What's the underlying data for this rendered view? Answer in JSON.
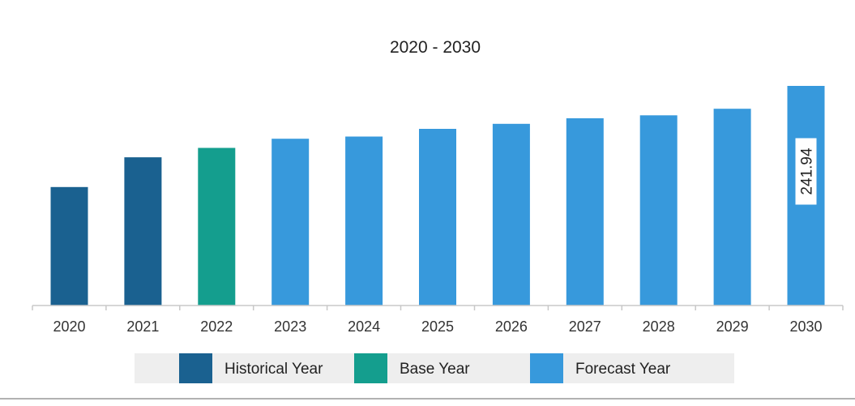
{
  "chart_data": {
    "type": "bar",
    "title": "2020 - 2030",
    "xlabel": "",
    "ylabel": "",
    "categories": [
      "2020",
      "2021",
      "2022",
      "2023",
      "2024",
      "2025",
      "2026",
      "2027",
      "2028",
      "2029",
      "2030"
    ],
    "values": [
      130.5,
      163.3,
      173.6,
      183.7,
      186.1,
      194.6,
      200.2,
      206.3,
      209.5,
      216.8,
      241.94
    ],
    "value_labels": [
      "",
      "",
      "",
      "",
      "",
      "",
      "",
      "",
      "",
      "",
      "241.94"
    ],
    "bar_groups": [
      "historical",
      "historical",
      "base",
      "forecast",
      "forecast",
      "forecast",
      "forecast",
      "forecast",
      "forecast",
      "forecast",
      "forecast"
    ],
    "ylim": [
      0,
      241.94
    ],
    "grid": false,
    "legend_position": "bottom",
    "legend": [
      {
        "key": "historical",
        "label": "Historical Year",
        "color": "#1a6190"
      },
      {
        "key": "base",
        "label": "Base Year",
        "color": "#149e8e"
      },
      {
        "key": "forecast",
        "label": "Forecast Year",
        "color": "#3799dc"
      }
    ]
  },
  "colors": {
    "axis": "#c8c8c8",
    "legend_background": "#eeeeee",
    "bottom_rule": "#999999"
  }
}
